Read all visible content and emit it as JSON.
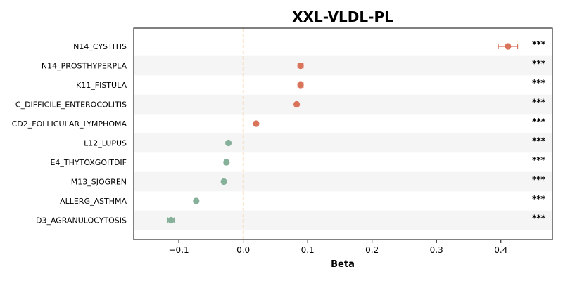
{
  "chart_data": {
    "type": "scatter",
    "title": "XXL-VLDL-PL",
    "xlabel": "Beta",
    "ylabel": "",
    "xlim": [
      -0.17,
      0.48
    ],
    "xticks": [
      -0.1,
      0.0,
      0.1,
      0.2,
      0.3,
      0.4
    ],
    "xtick_labels": [
      "−0.1",
      "0.0",
      "0.1",
      "0.2",
      "0.3",
      "0.4"
    ],
    "reference_line": 0.0,
    "grid": false,
    "colors": {
      "positive": "#d9735a",
      "negative": "#86b09a",
      "ref_line": "#f0c892",
      "band": "#f5f5f5"
    },
    "points": [
      {
        "label": "N14_CYSTITIS",
        "beta": 0.411,
        "ci_low": 0.396,
        "ci_high": 0.426,
        "sig": "***"
      },
      {
        "label": "N14_PROSTHYPERPLA",
        "beta": 0.089,
        "ci_low": 0.085,
        "ci_high": 0.093,
        "sig": "***"
      },
      {
        "label": "K11_FISTULA",
        "beta": 0.089,
        "ci_low": 0.085,
        "ci_high": 0.093,
        "sig": "***"
      },
      {
        "label": "C_DIFFICILE_ENTEROCOLITIS",
        "beta": 0.083,
        "ci_low": 0.081,
        "ci_high": 0.085,
        "sig": "***"
      },
      {
        "label": "CD2_FOLLICULAR_LYMPHOMA",
        "beta": 0.02,
        "ci_low": 0.018,
        "ci_high": 0.022,
        "sig": "***"
      },
      {
        "label": "L12_LUPUS",
        "beta": -0.023,
        "ci_low": -0.025,
        "ci_high": -0.021,
        "sig": "***"
      },
      {
        "label": "E4_THYTOXGOITDIF",
        "beta": -0.026,
        "ci_low": -0.028,
        "ci_high": -0.024,
        "sig": "***"
      },
      {
        "label": "M13_SJOGREN",
        "beta": -0.03,
        "ci_low": -0.032,
        "ci_high": -0.028,
        "sig": "***"
      },
      {
        "label": "ALLERG_ASTHMA",
        "beta": -0.073,
        "ci_low": -0.075,
        "ci_high": -0.071,
        "sig": "***"
      },
      {
        "label": "D3_AGRANULOCYTOSIS",
        "beta": -0.112,
        "ci_low": -0.117,
        "ci_high": -0.107,
        "sig": "***"
      }
    ]
  }
}
